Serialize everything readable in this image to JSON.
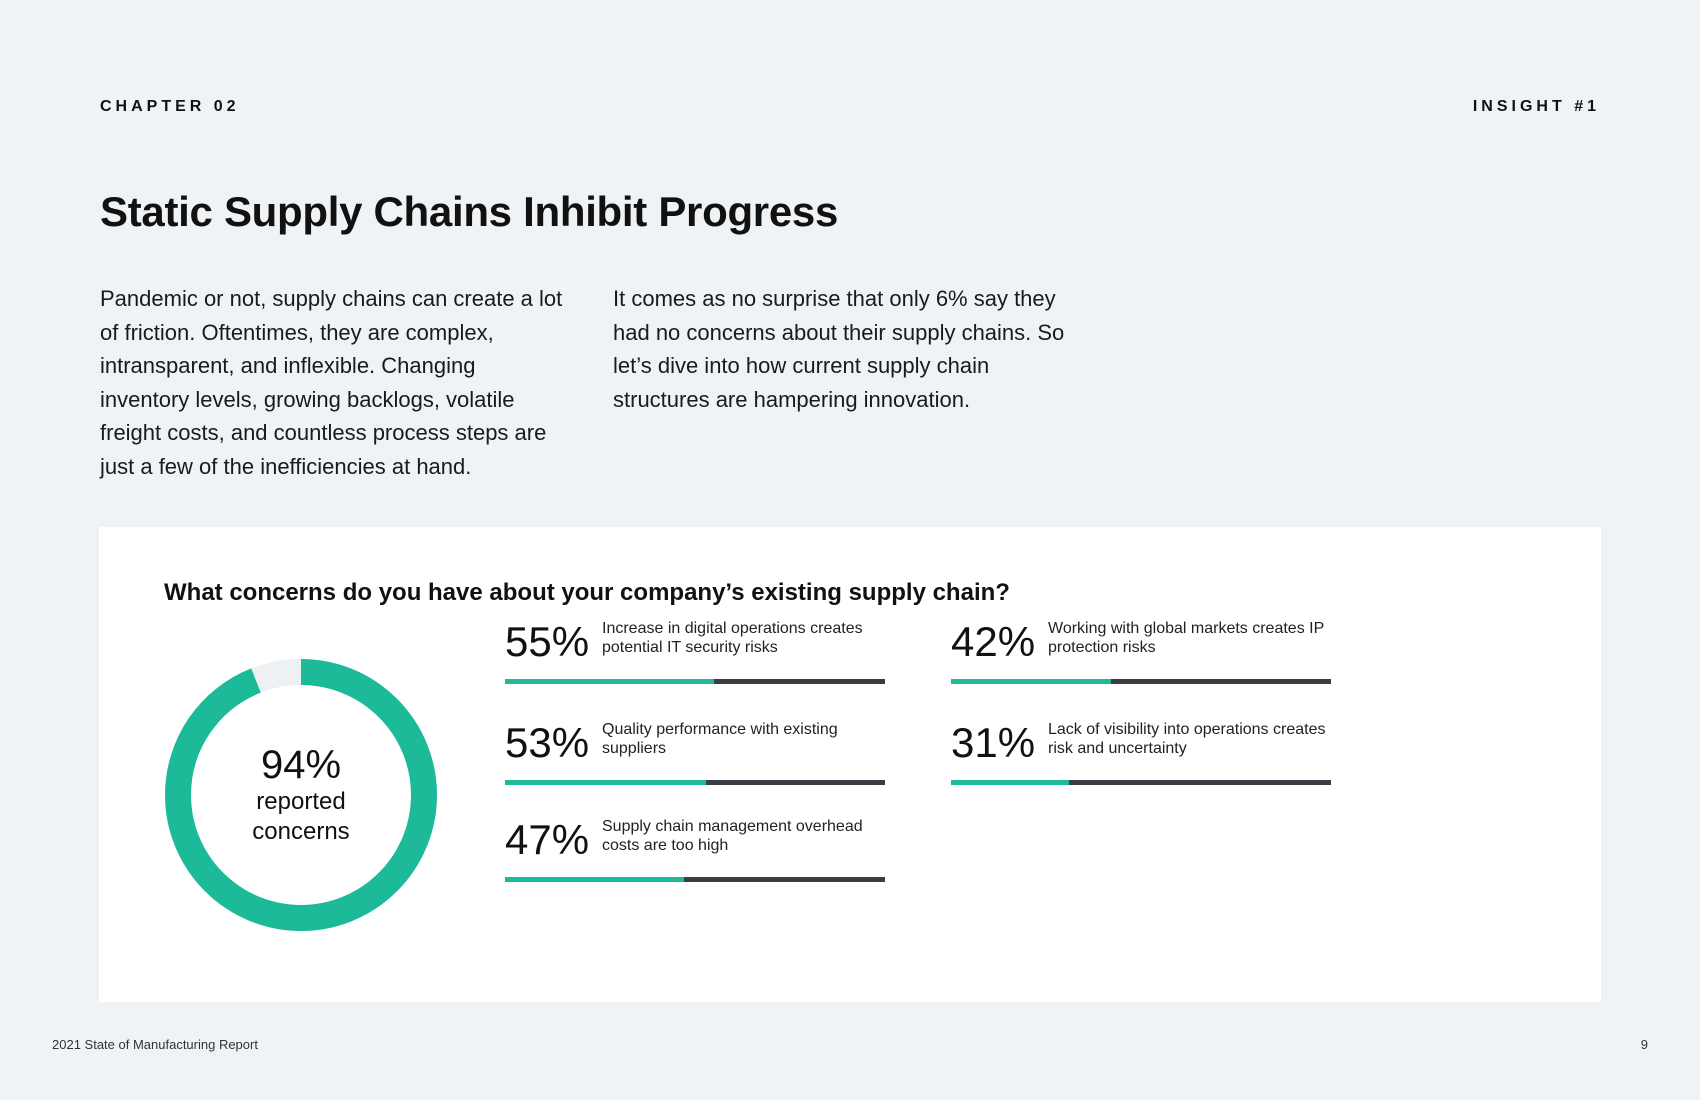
{
  "header": {
    "chapter": "CHAPTER 02",
    "insight": "INSIGHT #1"
  },
  "title": "Static Supply Chains Inhibit Progress",
  "body": {
    "column1": "Pandemic or not, supply chains can create a lot of friction. Oftentimes, they are complex, intransparent, and inflexible. Changing inventory levels, growing backlogs, volatile freight costs, and countless process steps are just a few of the inefficiencies at hand.",
    "column2": "It comes as no surprise that only 6% say they had no concerns about their supply chains. So let’s dive into how current supply chain structures are hampering innovation."
  },
  "panel": {
    "question": "What concerns do you have about your company’s existing supply chain?",
    "donut": {
      "value": "94%",
      "label_line1": "reported",
      "label_line2": "concerns",
      "fraction": 0.94,
      "color": "#1cba98",
      "remainder_color": "#eef1f3"
    }
  },
  "chart_data": {
    "type": "bar",
    "title": "What concerns do you have about your company’s existing supply chain?",
    "categories": [
      "Increase in digital operations creates potential IT security risks",
      "Quality performance with existing suppliers",
      "Supply chain management overhead costs are too high",
      "Working with global markets creates IP protection risks",
      "Lack of visibility into operations creates risk and uncertainty"
    ],
    "values": [
      55,
      53,
      47,
      42,
      31
    ],
    "labels": [
      "55%",
      "53%",
      "47%",
      "42%",
      "31%"
    ],
    "ylim": [
      0,
      100
    ],
    "fill_color": "#1cba98",
    "track_color": "#3b3e44"
  },
  "footer": {
    "report": "2021 State of Manufacturing Report",
    "page": "9"
  }
}
